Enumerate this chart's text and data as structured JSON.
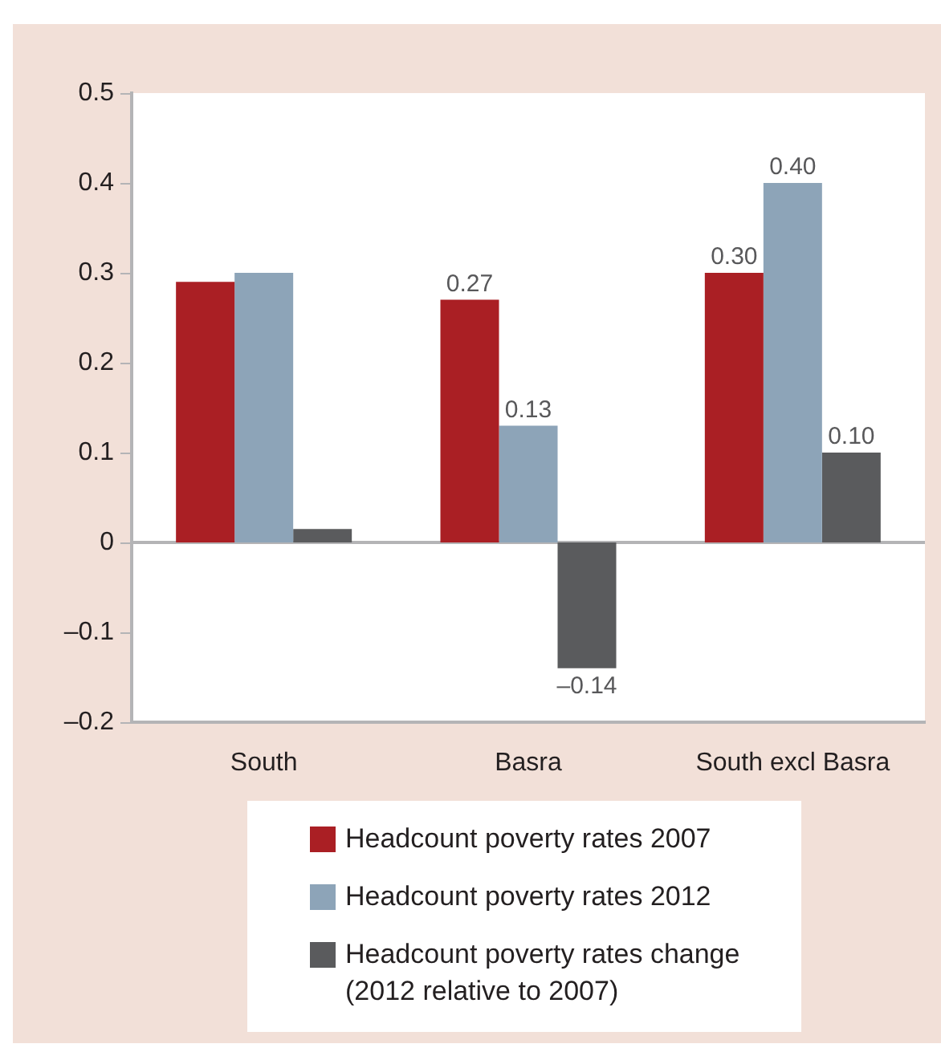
{
  "chart_data": {
    "type": "bar",
    "categories": [
      "South",
      "Basra",
      "South excl Basra"
    ],
    "series": [
      {
        "name": "Headcount poverty rates 2007",
        "color": "#aa1f24",
        "values": [
          0.29,
          0.27,
          0.3
        ],
        "value_labels": [
          null,
          "0.27",
          "0.30"
        ]
      },
      {
        "name": "Headcount poverty rates 2012",
        "color": "#8da4b8",
        "values": [
          0.3,
          0.13,
          0.4
        ],
        "value_labels": [
          null,
          "0.13",
          "0.40"
        ]
      },
      {
        "name": "Headcount poverty rates change (2012 relative to 2007)",
        "color": "#5a5b5d",
        "values": [
          0.015,
          -0.14,
          0.1
        ],
        "value_labels": [
          null,
          "–0.14",
          "0.10"
        ]
      }
    ],
    "ylim": [
      -0.2,
      0.5
    ],
    "yticks": [
      {
        "value": -0.2,
        "label": "–0.2"
      },
      {
        "value": -0.1,
        "label": "–0.1"
      },
      0,
      0.1,
      0.2,
      0.3,
      0.4,
      0.5
    ],
    "ref_lines": [
      {
        "axis": "y",
        "value": 0,
        "color": "#b4b4b6"
      }
    ],
    "grid": false,
    "legend": "bottom"
  }
}
